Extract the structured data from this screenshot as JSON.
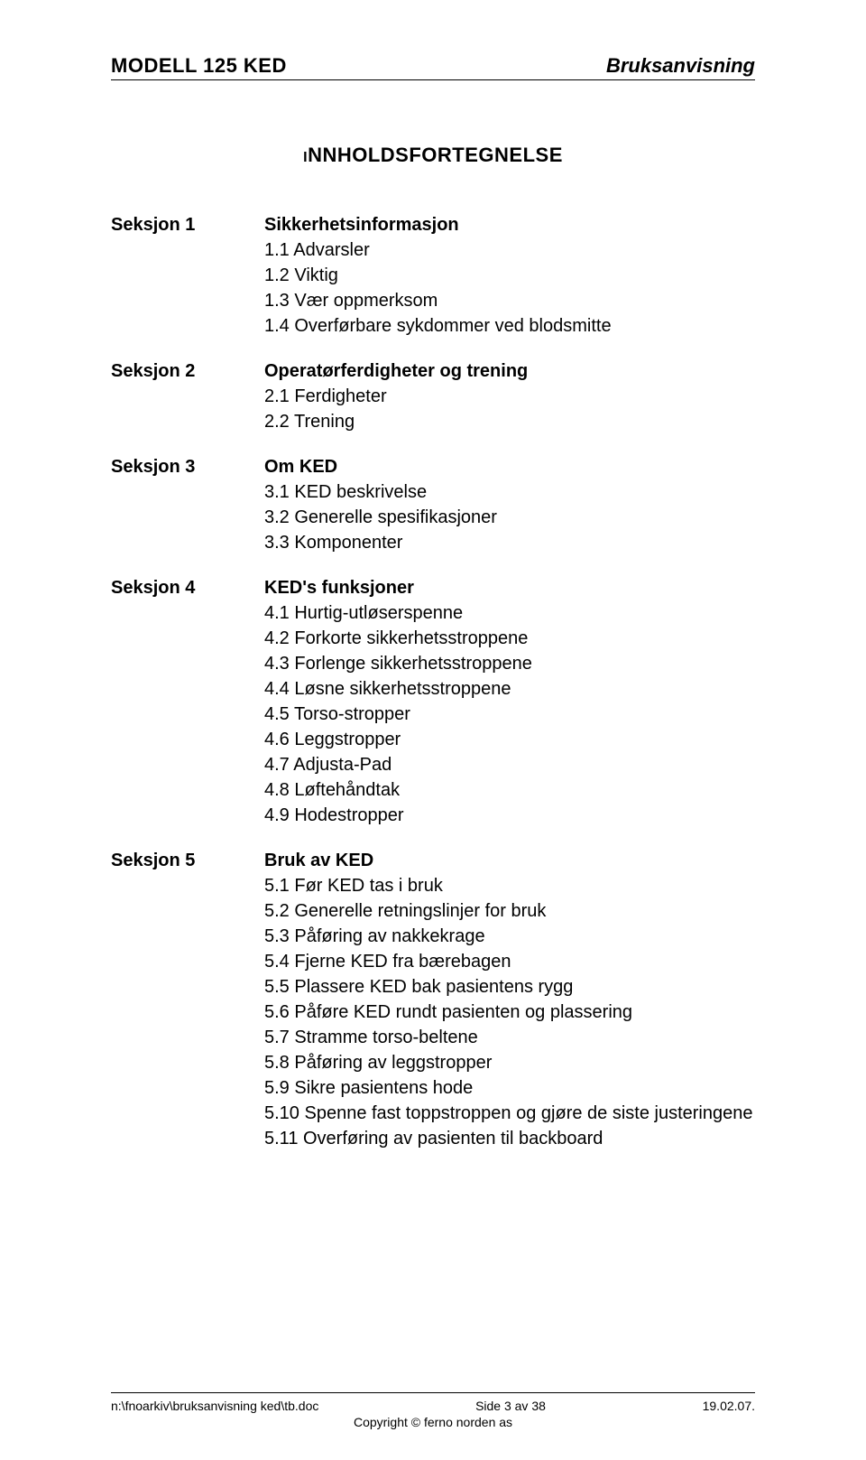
{
  "header": {
    "left": "MODELL 125 KED",
    "right": "Bruksanvisning"
  },
  "toc_title": "INNHOLDSFORTEGNELSE",
  "sections": [
    {
      "label": "Seksjon 1",
      "heading": "Sikkerhetsinformasjon",
      "items": [
        "1.1   Advarsler",
        "1.2   Viktig",
        "1.3   Vær oppmerksom",
        "1.4   Overførbare sykdommer ved blodsmitte"
      ]
    },
    {
      "label": "Seksjon 2",
      "heading": "Operatørferdigheter og trening",
      "items": [
        "2.1   Ferdigheter",
        "2.2   Trening"
      ]
    },
    {
      "label": "Seksjon 3",
      "heading": "Om KED",
      "items": [
        "3.1   KED beskrivelse",
        "3.2   Generelle spesifikasjoner",
        "3.3   Komponenter"
      ]
    },
    {
      "label": "Seksjon 4",
      "heading": "KED's funksjoner",
      "items": [
        "4.1   Hurtig-utløserspenne",
        "4.2   Forkorte sikkerhetsstroppene",
        "4.3   Forlenge sikkerhetsstroppene",
        "4.4   Løsne sikkerhetsstroppene",
        "4.5   Torso-stropper",
        "4.6   Leggstropper",
        "4.7   Adjusta-Pad",
        "4.8   Løftehåndtak",
        "4.9   Hodestropper"
      ]
    },
    {
      "label": "Seksjon 5",
      "heading": "Bruk av KED",
      "items": [
        "5.1   Før KED tas i bruk",
        "5.2   Generelle retningslinjer for bruk",
        "5.3   Påføring av nakkekrage",
        "5.4   Fjerne KED fra bærebagen",
        "5.5   Plassere KED bak pasientens rygg",
        "5.6   Påføre KED rundt pasienten og plassering",
        "5.7   Stramme torso-beltene",
        "5.8   Påføring av leggstropper",
        "5.9   Sikre pasientens hode",
        "5.10 Spenne fast toppstroppen og gjøre de siste justeringene",
        "5.11 Overføring av pasienten til backboard"
      ]
    }
  ],
  "footer": {
    "left": "n:\\fnoarkiv\\bruksanvisning ked\\tb.doc",
    "center_top": "Side 3 av 38",
    "right": "19.02.07.",
    "center_bottom": "Copyright © ferno norden as"
  },
  "colors": {
    "text": "#000000",
    "background": "#ffffff",
    "rule": "#000000"
  },
  "typography": {
    "header_fontsize": 22,
    "toc_title_fontsize": 22,
    "body_fontsize": 20,
    "footer_fontsize": 14,
    "font_family": "Arial"
  }
}
